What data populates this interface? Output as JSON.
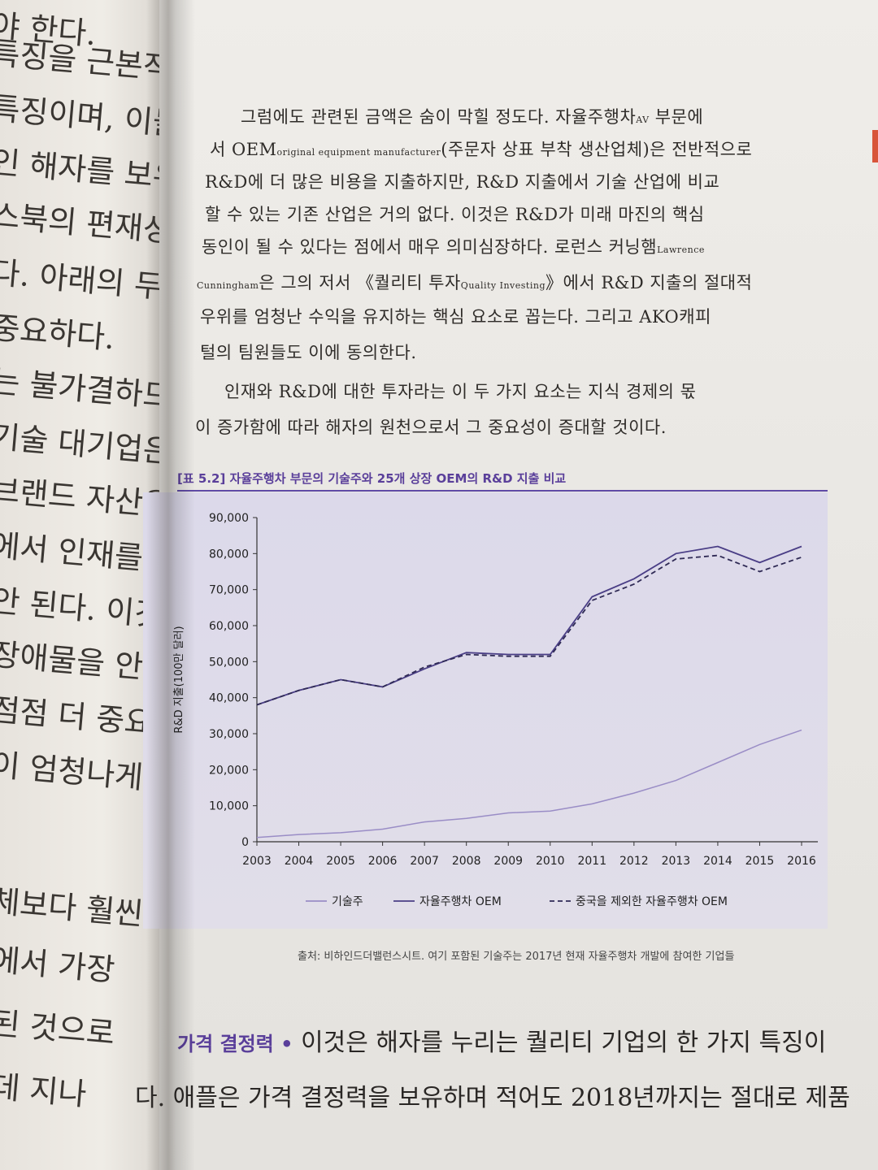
{
  "left_page": {
    "lines": [
      "야 한다.",
      "특징을 근본적으로",
      "특징이며, 이들 중",
      "인 해자를 보유한",
      "스북의 편재성과",
      "다. 아래의 두 가지",
      "중요하다.",
      "는 불가결하므로",
      "기술 대기업은",
      "브랜드 자산을",
      "에서 인재를 끌어",
      "안 된다. 이것은",
      "장애물을 안겨준",
      "점점 더 중요해",
      "이 엄청나게",
      "체보다 훨씬",
      "에서 가장",
      "된 것으로",
      "데 지나"
    ]
  },
  "paragraph1": {
    "l1": "그럼에도 관련된 금액은 숨이 막힐 정도다. 자율주행차",
    "l1_small": "AV",
    "l1_end": " 부문에",
    "l2_a": "서 OEM",
    "l2_small": "original equipment manufacturer",
    "l2_b": "(주문자 상표 부착 생산업체)은 전반적으로",
    "l3": "R&D에 더 많은 비용을 지출하지만, R&D 지출에서 기술 산업에 비교",
    "l4": "할 수 있는 기존 산업은 거의 없다. 이것은 R&D가 미래 마진의 핵심",
    "l5_a": "동인이 될 수 있다는 점에서 매우 의미심장하다. 로런스 커닝햄",
    "l5_small": "Lawrence",
    "l6_small": "Cunningham",
    "l6_a": "은 그의 저서 《퀄리티 투자",
    "l6_small2": "Quality Investing",
    "l6_b": "》에서 R&D 지출의 절대적",
    "l7": "우위를 엄청난 수익을 유지하는 핵심 요소로 꼽는다. 그리고 AKO캐피",
    "l8": "털의 팀원들도 이에 동의한다."
  },
  "paragraph2": {
    "l1": "인재와 R&D에 대한 투자라는 이 두 가지 요소는 지식 경제의 몫",
    "l2": "이 증가함에 따라 해자의 원천으로서 그 중요성이 증대할 것이다."
  },
  "figure": {
    "title": "[표 5.2] 자율주행차 부문의 기술주와 25개 상장 OEM의 R&D 지출 비교",
    "caption": "출처: 비하인드더밸런스시트. 여기 포함된 기술주는 2017년 현재 자율주행차 개발에 참여한 기업들"
  },
  "chart_data": {
    "type": "line",
    "title": "[표 5.2] 자율주행차 부문의 기술주와 25개 상장 OEM의 R&D 지출 비교",
    "xlabel": "",
    "ylabel": "R&D 지출(100만 달러)",
    "x": [
      2003,
      2004,
      2005,
      2006,
      2007,
      2008,
      2009,
      2010,
      2011,
      2012,
      2013,
      2014,
      2015,
      2016
    ],
    "ylim": [
      0,
      90000
    ],
    "yticks": [
      "0",
      "10,000",
      "20,000",
      "30,000",
      "40,000",
      "50,000",
      "60,000",
      "70,000",
      "80,000",
      "90,000"
    ],
    "legend_position": "bottom",
    "series": [
      {
        "name": "기술주",
        "style": "solid-light",
        "color": "#9a8dc6",
        "values": [
          1200,
          2000,
          2500,
          3500,
          5500,
          6500,
          8000,
          8500,
          10500,
          13500,
          17000,
          22000,
          27000,
          31000
        ]
      },
      {
        "name": "자율주행차 OEM",
        "style": "solid",
        "color": "#4a3e86",
        "values": [
          38000,
          42000,
          45000,
          43000,
          48000,
          52500,
          52000,
          52000,
          68000,
          73000,
          80000,
          82000,
          77500,
          82000
        ]
      },
      {
        "name": "중국을 제외한 자율주행차 OEM",
        "style": "dashed",
        "color": "#2f2a55",
        "values": [
          38000,
          42000,
          45000,
          43000,
          48500,
          52000,
          51500,
          51500,
          67000,
          71500,
          78500,
          79500,
          75000,
          79000
        ]
      }
    ]
  },
  "section": {
    "heading": "가격 결정력 •",
    "l1": " 이것은 해자를 누리는 퀄리티 기업의 한 가지 특징이",
    "l2": "다. 애플은 가격 결정력을 보유하며 적어도 2018년까지는 절대로 제품"
  }
}
